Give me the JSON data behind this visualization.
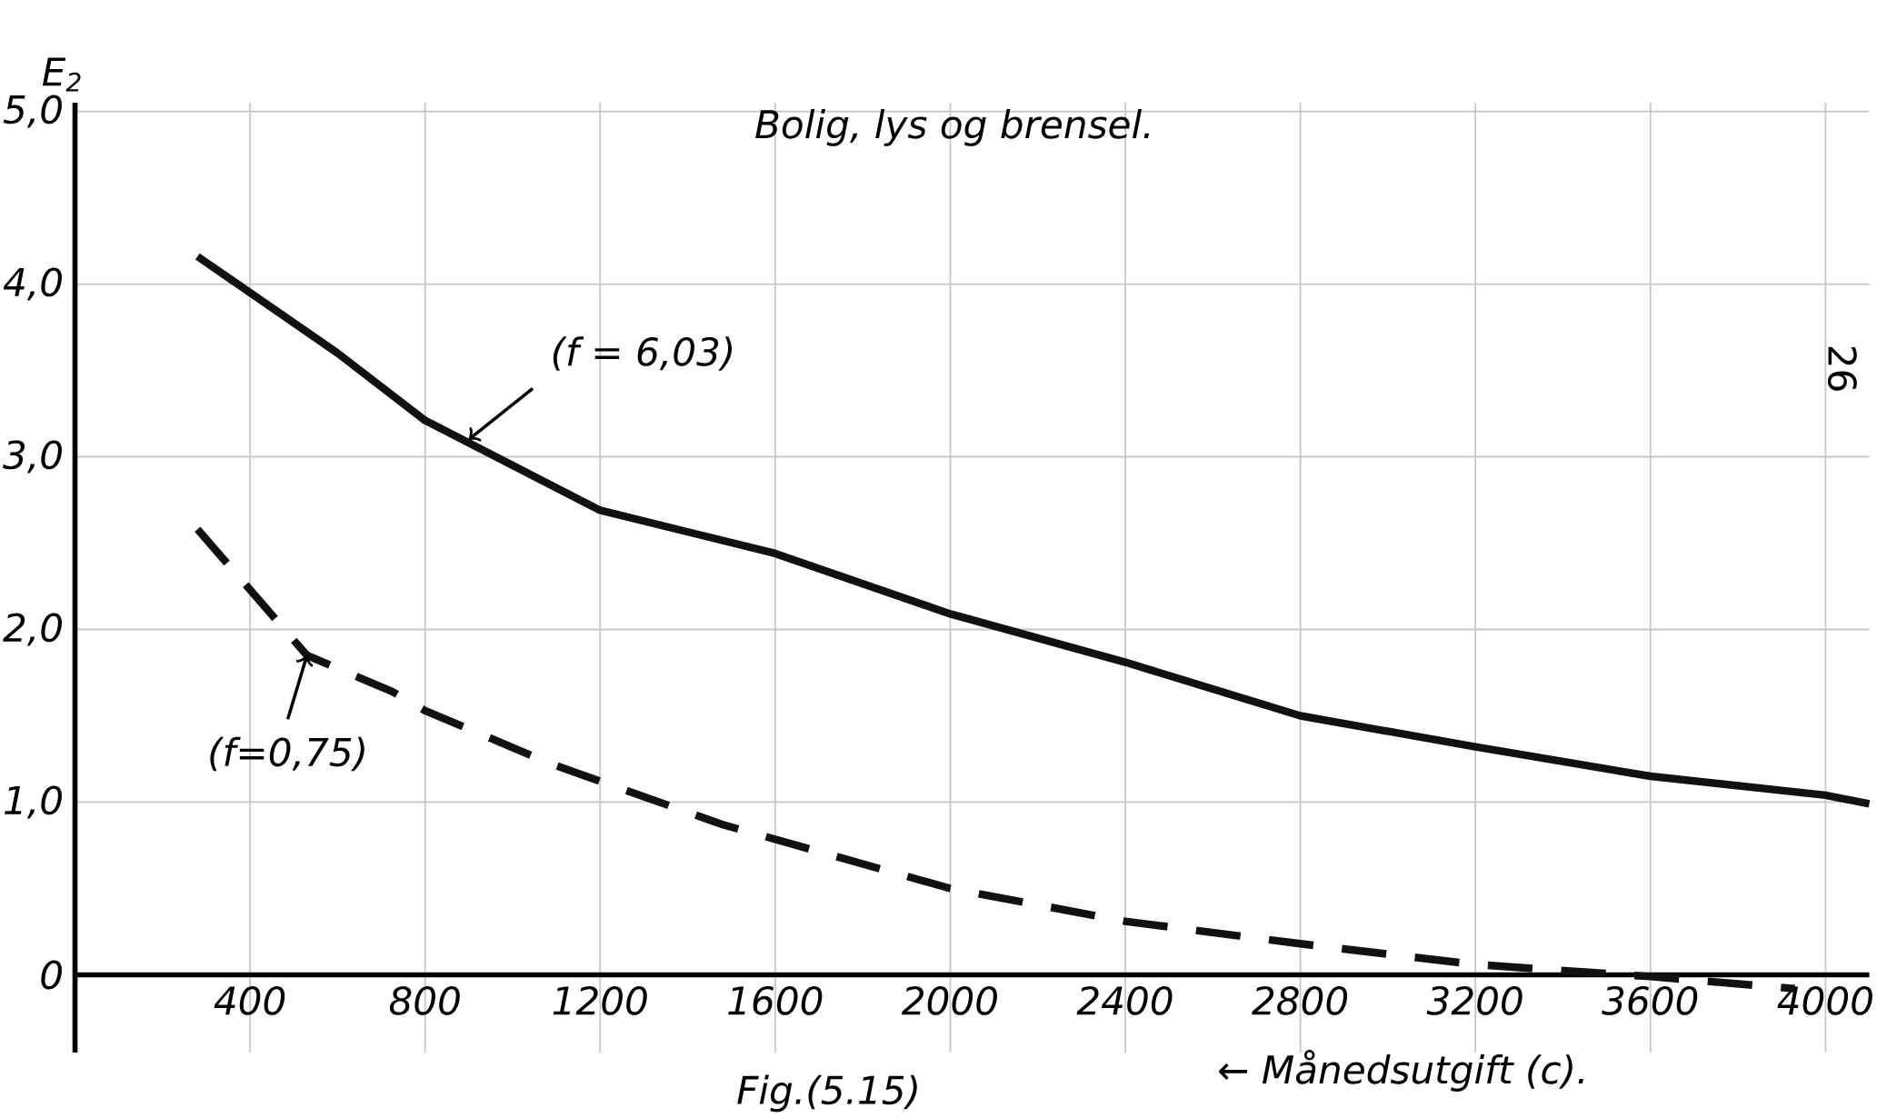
{
  "chart_data": {
    "type": "line",
    "title": "Bolig, lys og brensel.",
    "xlabel": "← Månedsutgift (c).",
    "ylabel": "E$_{2}$",
    "xlim": [
      0,
      4100
    ],
    "ylim": [
      -0.45,
      5.05
    ],
    "xticks": [
      400,
      800,
      1200,
      1600,
      2000,
      2400,
      2800,
      3200,
      3600,
      4000
    ],
    "yticks": [
      {
        "value": 0,
        "label": "0"
      },
      {
        "value": 1,
        "label": "1,0"
      },
      {
        "value": 2,
        "label": "2,0"
      },
      {
        "value": 3,
        "label": "3,0"
      },
      {
        "value": 4,
        "label": "4,0"
      },
      {
        "value": 5,
        "label": "5,0"
      }
    ],
    "grid": true,
    "series": [
      {
        "color": "#111111",
        "line_style": "solid",
        "x": [
          280,
          600,
          800,
          1200,
          1600,
          2000,
          2400,
          2800,
          3200,
          3600,
          4000,
          4100
        ],
        "values": [
          4.16,
          3.6,
          3.21,
          2.69,
          2.44,
          2.09,
          1.81,
          1.5,
          1.32,
          1.15,
          1.04,
          0.99
        ]
      },
      {
        "color": "#111111",
        "line_style": "dashed",
        "x": [
          280,
          530,
          725,
          800,
          1090,
          1480,
          2000,
          2400,
          2800,
          3200,
          3600,
          3930
        ],
        "values": [
          2.58,
          1.85,
          1.64,
          1.53,
          1.22,
          0.87,
          0.5,
          0.31,
          0.18,
          0.06,
          -0.01,
          -0.08
        ]
      }
    ],
    "annotations": [
      {
        "text": "(f = 6,03)",
        "x": 900,
        "y": 3.1
      },
      {
        "text": "(f=0,75)",
        "x": 530,
        "y": 1.85
      },
      "Fig.(5.15)",
      "26"
    ]
  }
}
